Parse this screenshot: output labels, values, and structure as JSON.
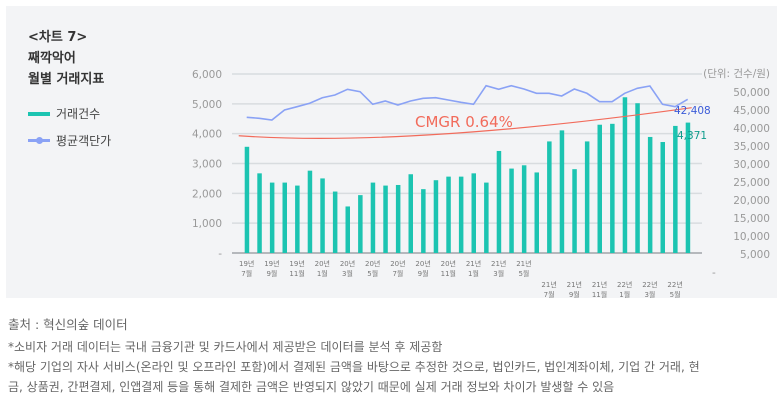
{
  "title": {
    "line1": "<차트 7>",
    "line2": "째깍악어",
    "line3": "월별 거래지표"
  },
  "legend": [
    {
      "label": "거래건수",
      "color": "#1cc4b1"
    },
    {
      "label": "평균객단가",
      "color": "#8aa2f5"
    }
  ],
  "chart_data": {
    "type": "bar+line",
    "unit_label": "(단위: 건수/원)",
    "annotation": "CMGR 0.64%",
    "annotation_color": "#f26b5b",
    "categories": [
      "19.07",
      "19.08",
      "19.09",
      "19.10",
      "19.11",
      "19.12",
      "20.01",
      "20.02",
      "20.03",
      "20.04",
      "20.05",
      "20.06",
      "20.07",
      "20.08",
      "20.09",
      "20.10",
      "20.11",
      "20.12",
      "21.01",
      "21.02",
      "21.03",
      "21.04",
      "21.05",
      "21.06",
      "21.07",
      "21.08",
      "21.09",
      "21.10",
      "21.11",
      "21.12",
      "22.01",
      "22.02",
      "22.03",
      "22.04",
      "22.05",
      "22.06"
    ],
    "x_tick_labels": [
      {
        "year": "19년",
        "month": "7월",
        "index": 0
      },
      {
        "year": "19년",
        "month": "9월",
        "index": 2
      },
      {
        "year": "19년",
        "month": "11월",
        "index": 4
      },
      {
        "year": "20년",
        "month": "1월",
        "index": 6
      },
      {
        "year": "20년",
        "month": "3월",
        "index": 8
      },
      {
        "year": "20년",
        "month": "5월",
        "index": 10
      },
      {
        "year": "20년",
        "month": "7월",
        "index": 12
      },
      {
        "year": "20년",
        "month": "9월",
        "index": 14
      },
      {
        "year": "20년",
        "month": "11월",
        "index": 16
      },
      {
        "year": "21년",
        "month": "1월",
        "index": 18
      },
      {
        "year": "21년",
        "month": "3월",
        "index": 20
      },
      {
        "year": "21년",
        "month": "5월",
        "index": 22
      },
      {
        "year": "21년",
        "month": "7월",
        "index": 24,
        "row": 2
      },
      {
        "year": "21년",
        "month": "9월",
        "index": 26,
        "row": 2
      },
      {
        "year": "21년",
        "month": "11월",
        "index": 28,
        "row": 2
      },
      {
        "year": "22년",
        "month": "1월",
        "index": 30,
        "row": 2
      },
      {
        "year": "22년",
        "month": "3월",
        "index": 32,
        "row": 2
      },
      {
        "year": "22년",
        "month": "5월",
        "index": 34,
        "row": 2
      }
    ],
    "left_axis": {
      "ticks": [
        "-",
        "1,000",
        "2,000",
        "3,000",
        "4,000",
        "5,000",
        "6,000"
      ],
      "range": [
        0,
        6000
      ]
    },
    "right_axis": {
      "ticks": [
        "-",
        "5,000",
        "10,000",
        "15,000",
        "20,000",
        "25,000",
        "30,000",
        "35,000",
        "40,000",
        "45,000",
        "50,000"
      ],
      "range": [
        0,
        50000
      ]
    },
    "series": [
      {
        "name": "거래건수",
        "type": "bar",
        "axis": "left",
        "color": "#1cc4b1",
        "values": [
          3560,
          2670,
          2360,
          2360,
          2260,
          2760,
          2500,
          2060,
          1560,
          1940,
          2360,
          2260,
          2280,
          2640,
          2140,
          2440,
          2560,
          2560,
          2670,
          2360,
          3420,
          2830,
          2940,
          2700,
          3740,
          4110,
          2810,
          3740,
          4300,
          4330,
          5220,
          5020,
          3890,
          3720,
          4260,
          4371
        ],
        "last_label": "4,371"
      },
      {
        "name": "평균객단가",
        "type": "line",
        "axis": "right",
        "color": "#8aa2f5",
        "values": [
          37400,
          37130,
          36650,
          39430,
          40350,
          41300,
          42850,
          43600,
          45190,
          44520,
          41020,
          41940,
          40820,
          41940,
          42690,
          42850,
          42210,
          41570,
          41020,
          46190,
          45190,
          46190,
          45270,
          44080,
          44080,
          43330,
          45270,
          44080,
          41740,
          41740,
          44080,
          45470,
          46100,
          41020,
          40350,
          42408
        ],
        "last_label": "42,408"
      }
    ],
    "trend_line": {
      "color": "#f26b5b",
      "axis": "left",
      "values": [
        3930,
        3810,
        4870
      ]
    },
    "grid": true
  },
  "footer": {
    "source": "출처 : 혁신의숲 데이터",
    "note1": "*소비자 거래 데이터는 국내 금융기관 및 카드사에서 제공받은 데이터를 분석 후 제공함",
    "note2a": "*해당 기업의 자사 서비스(온라인 및 오프라인 포함)에서 결제된 금액을 바탕으로 추정한 것으로, 법인카드, 법인계좌이체, 기업 간 거래, 현",
    "note2b": "금, 상품권, 간편결제, 인앱결제 등을 통해 결제한 금액은 반영되지 않았기 때문에 실제 거래 정보와 차이가 발생할 수 있음"
  }
}
